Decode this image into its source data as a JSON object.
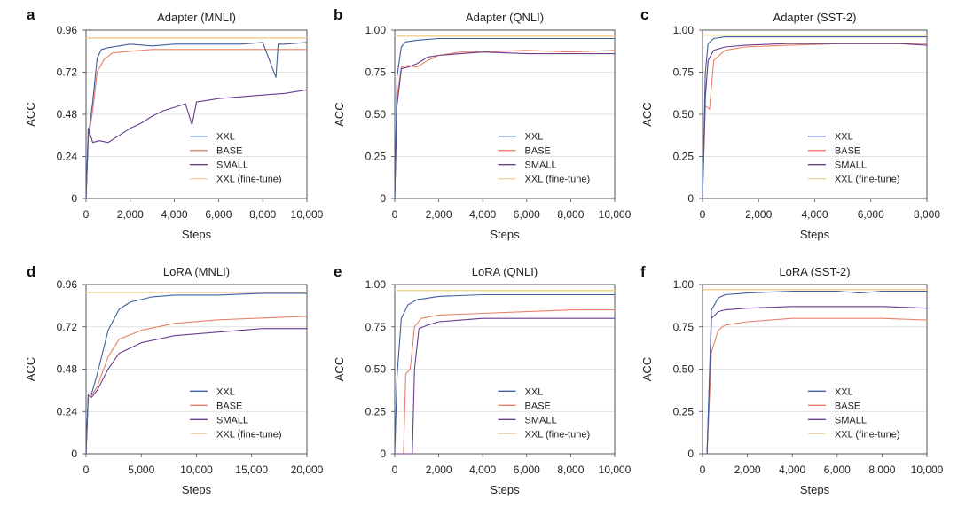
{
  "figure": {
    "series_names": [
      "XXL",
      "BASE",
      "SMALL",
      "XXL (fine-tune)"
    ],
    "colors": {
      "XXL": "#3f5f9e",
      "BASE": "#e8806a",
      "SMALL": "#6a3d8e",
      "XXL (fine-tune)": "#f2d49b",
      "grid": "#d9d9d9",
      "frame": "#444444"
    }
  },
  "chart_data": [
    {
      "panel": "a",
      "type": "line",
      "title": "Adapter (MNLI)",
      "xlabel": "Steps",
      "ylabel": "ACC",
      "xlim": [
        0,
        10000
      ],
      "ylim": [
        0,
        0.96
      ],
      "xticks": [
        0,
        2000,
        4000,
        6000,
        8000,
        10000
      ],
      "xtick_labels": [
        "0",
        "2,000",
        "4,000",
        "6,000",
        "8,000",
        "10,000"
      ],
      "yticks": [
        0,
        0.24,
        0.48,
        0.72,
        0.96
      ],
      "ytick_labels": [
        "0",
        "0.24",
        "0.48",
        "0.72",
        "0.96"
      ],
      "series": [
        {
          "name": "XXL",
          "x": [
            0,
            100,
            300,
            500,
            700,
            1000,
            1500,
            2000,
            3000,
            4000,
            5000,
            6000,
            7000,
            8000,
            8600,
            8700,
            9000,
            10000
          ],
          "y": [
            0.0,
            0.35,
            0.55,
            0.8,
            0.85,
            0.86,
            0.87,
            0.88,
            0.87,
            0.88,
            0.88,
            0.88,
            0.88,
            0.89,
            0.69,
            0.88,
            0.88,
            0.89
          ]
        },
        {
          "name": "BASE",
          "x": [
            0,
            100,
            300,
            500,
            800,
            1200,
            2000,
            3000,
            4000,
            5000,
            6000,
            7000,
            8000,
            9000,
            10000
          ],
          "y": [
            0.0,
            0.34,
            0.5,
            0.72,
            0.79,
            0.83,
            0.84,
            0.85,
            0.85,
            0.85,
            0.85,
            0.85,
            0.85,
            0.85,
            0.85
          ]
        },
        {
          "name": "SMALL",
          "x": [
            0,
            100,
            300,
            600,
            1000,
            1500,
            2000,
            2500,
            3000,
            3500,
            4000,
            4500,
            4800,
            5000,
            5500,
            6000,
            7000,
            8000,
            9000,
            10000
          ],
          "y": [
            0.0,
            0.4,
            0.32,
            0.33,
            0.32,
            0.36,
            0.4,
            0.43,
            0.47,
            0.5,
            0.52,
            0.54,
            0.42,
            0.55,
            0.56,
            0.57,
            0.58,
            0.59,
            0.6,
            0.62
          ]
        },
        {
          "name": "XXL (fine-tune)",
          "x": [
            0,
            10000
          ],
          "y": [
            0.915,
            0.915
          ]
        }
      ]
    },
    {
      "panel": "b",
      "type": "line",
      "title": "Adapter (QNLI)",
      "xlabel": "Steps",
      "ylabel": "ACC",
      "xlim": [
        0,
        10000
      ],
      "ylim": [
        0,
        1.0
      ],
      "xticks": [
        0,
        2000,
        4000,
        6000,
        8000,
        10000
      ],
      "xtick_labels": [
        "0",
        "2,000",
        "4,000",
        "6,000",
        "8,000",
        "10,000"
      ],
      "yticks": [
        0,
        0.25,
        0.5,
        0.75,
        1.0
      ],
      "ytick_labels": [
        "0",
        "0.25",
        "0.50",
        "0.75",
        "1.00"
      ],
      "series": [
        {
          "name": "XXL",
          "x": [
            0,
            100,
            300,
            500,
            1000,
            2000,
            4000,
            6000,
            8000,
            10000
          ],
          "y": [
            0.0,
            0.72,
            0.9,
            0.93,
            0.94,
            0.95,
            0.95,
            0.95,
            0.95,
            0.95
          ]
        },
        {
          "name": "BASE",
          "x": [
            0,
            100,
            300,
            600,
            1000,
            1500,
            2000,
            3000,
            4000,
            6000,
            8000,
            10000
          ],
          "y": [
            0.0,
            0.6,
            0.78,
            0.79,
            0.78,
            0.82,
            0.85,
            0.87,
            0.87,
            0.88,
            0.87,
            0.88
          ]
        },
        {
          "name": "SMALL",
          "x": [
            0,
            100,
            300,
            600,
            1000,
            1500,
            2000,
            3000,
            4000,
            6000,
            8000,
            10000
          ],
          "y": [
            0.0,
            0.55,
            0.77,
            0.78,
            0.8,
            0.84,
            0.85,
            0.86,
            0.87,
            0.86,
            0.86,
            0.86
          ]
        },
        {
          "name": "XXL (fine-tune)",
          "x": [
            0,
            10000
          ],
          "y": [
            0.965,
            0.965
          ]
        }
      ]
    },
    {
      "panel": "c",
      "type": "line",
      "title": "Adapter (SST-2)",
      "xlabel": "Steps",
      "ylabel": "ACC",
      "xlim": [
        0,
        8000
      ],
      "ylim": [
        0,
        1.0
      ],
      "xticks": [
        0,
        2000,
        4000,
        6000,
        8000
      ],
      "xtick_labels": [
        "0",
        "2,000",
        "4,000",
        "6,000",
        "8,000"
      ],
      "yticks": [
        0,
        0.25,
        0.5,
        0.75,
        1.0
      ],
      "ytick_labels": [
        "0",
        "0.25",
        "0.50",
        "0.75",
        "1.00"
      ],
      "series": [
        {
          "name": "XXL",
          "x": [
            0,
            100,
            200,
            400,
            800,
            1500,
            3000,
            5000,
            7000,
            8000
          ],
          "y": [
            0.0,
            0.75,
            0.92,
            0.95,
            0.96,
            0.96,
            0.96,
            0.96,
            0.96,
            0.96
          ]
        },
        {
          "name": "BASE",
          "x": [
            0,
            100,
            250,
            400,
            800,
            1500,
            3000,
            5000,
            7000,
            8000
          ],
          "y": [
            0.0,
            0.55,
            0.53,
            0.82,
            0.88,
            0.9,
            0.91,
            0.92,
            0.92,
            0.92
          ]
        },
        {
          "name": "SMALL",
          "x": [
            0,
            100,
            200,
            400,
            800,
            1500,
            3000,
            5000,
            7000,
            8000
          ],
          "y": [
            0.0,
            0.6,
            0.82,
            0.88,
            0.9,
            0.91,
            0.92,
            0.92,
            0.92,
            0.91
          ]
        },
        {
          "name": "XXL (fine-tune)",
          "x": [
            0,
            8000
          ],
          "y": [
            0.97,
            0.97
          ]
        }
      ]
    },
    {
      "panel": "d",
      "type": "line",
      "title": "LoRA (MNLI)",
      "xlabel": "Steps",
      "ylabel": "ACC",
      "xlim": [
        0,
        20000
      ],
      "ylim": [
        0,
        0.96
      ],
      "xticks": [
        0,
        5000,
        10000,
        15000,
        20000
      ],
      "xtick_labels": [
        "0",
        "5,000",
        "10,000",
        "15,000",
        "20,000"
      ],
      "yticks": [
        0,
        0.24,
        0.48,
        0.72,
        0.96
      ],
      "ytick_labels": [
        "0",
        "0.24",
        "0.48",
        "0.72",
        "0.96"
      ],
      "series": [
        {
          "name": "XXL",
          "x": [
            0,
            200,
            500,
            1000,
            2000,
            3000,
            4000,
            6000,
            8000,
            12000,
            16000,
            20000
          ],
          "y": [
            0.0,
            0.34,
            0.34,
            0.45,
            0.7,
            0.82,
            0.86,
            0.89,
            0.9,
            0.9,
            0.91,
            0.91
          ]
        },
        {
          "name": "BASE",
          "x": [
            0,
            200,
            500,
            1000,
            2000,
            3000,
            5000,
            8000,
            12000,
            16000,
            20000
          ],
          "y": [
            0.0,
            0.33,
            0.33,
            0.38,
            0.55,
            0.65,
            0.7,
            0.74,
            0.76,
            0.77,
            0.78
          ]
        },
        {
          "name": "SMALL",
          "x": [
            0,
            200,
            500,
            1000,
            2000,
            3000,
            5000,
            8000,
            12000,
            16000,
            20000
          ],
          "y": [
            0.0,
            0.33,
            0.32,
            0.36,
            0.48,
            0.57,
            0.63,
            0.67,
            0.69,
            0.71,
            0.71
          ]
        },
        {
          "name": "XXL (fine-tune)",
          "x": [
            0,
            20000
          ],
          "y": [
            0.915,
            0.915
          ]
        }
      ]
    },
    {
      "panel": "e",
      "type": "line",
      "title": "LoRA (QNLI)",
      "xlabel": "Steps",
      "ylabel": "ACC",
      "xlim": [
        0,
        10000
      ],
      "ylim": [
        0,
        1.0
      ],
      "xticks": [
        0,
        2000,
        4000,
        6000,
        8000,
        10000
      ],
      "xtick_labels": [
        "0",
        "2,000",
        "4,000",
        "6,000",
        "8,000",
        "10,000"
      ],
      "yticks": [
        0,
        0.25,
        0.5,
        0.75,
        1.0
      ],
      "ytick_labels": [
        "0",
        "0.25",
        "0.50",
        "0.75",
        "1.00"
      ],
      "series": [
        {
          "name": "XXL",
          "x": [
            0,
            100,
            300,
            600,
            1000,
            2000,
            4000,
            6000,
            8000,
            10000
          ],
          "y": [
            0.0,
            0.45,
            0.8,
            0.88,
            0.91,
            0.93,
            0.94,
            0.94,
            0.94,
            0.94
          ]
        },
        {
          "name": "BASE",
          "x": [
            0,
            400,
            500,
            700,
            900,
            1200,
            2000,
            4000,
            6000,
            8000,
            10000
          ],
          "y": [
            0.0,
            0.0,
            0.47,
            0.5,
            0.75,
            0.8,
            0.82,
            0.83,
            0.84,
            0.85,
            0.85
          ]
        },
        {
          "name": "SMALL",
          "x": [
            0,
            800,
            900,
            1100,
            1500,
            2000,
            4000,
            6000,
            8000,
            10000
          ],
          "y": [
            0.0,
            0.0,
            0.5,
            0.74,
            0.76,
            0.78,
            0.8,
            0.8,
            0.8,
            0.8
          ]
        },
        {
          "name": "XXL (fine-tune)",
          "x": [
            0,
            10000
          ],
          "y": [
            0.965,
            0.965
          ]
        }
      ]
    },
    {
      "panel": "f",
      "type": "line",
      "title": "LoRA (SST-2)",
      "xlabel": "Steps",
      "ylabel": "ACC",
      "xlim": [
        0,
        10000
      ],
      "ylim": [
        0,
        1.0
      ],
      "xticks": [
        0,
        2000,
        4000,
        6000,
        8000,
        10000
      ],
      "xtick_labels": [
        "0",
        "2,000",
        "4,000",
        "6,000",
        "8,000",
        "10,000"
      ],
      "yticks": [
        0,
        0.25,
        0.5,
        0.75,
        1.0
      ],
      "ytick_labels": [
        "0",
        "0.25",
        "0.50",
        "0.75",
        "1.00"
      ],
      "series": [
        {
          "name": "XXL",
          "x": [
            0,
            200,
            400,
            700,
            1000,
            2000,
            4000,
            6000,
            7000,
            8000,
            10000
          ],
          "y": [
            0.0,
            0.0,
            0.85,
            0.92,
            0.94,
            0.95,
            0.96,
            0.96,
            0.95,
            0.96,
            0.96
          ]
        },
        {
          "name": "BASE",
          "x": [
            0,
            200,
            400,
            700,
            1000,
            2000,
            4000,
            6000,
            8000,
            10000
          ],
          "y": [
            0.0,
            0.0,
            0.6,
            0.73,
            0.76,
            0.78,
            0.8,
            0.8,
            0.8,
            0.79
          ]
        },
        {
          "name": "SMALL",
          "x": [
            0,
            200,
            400,
            700,
            1000,
            2000,
            4000,
            6000,
            8000,
            10000
          ],
          "y": [
            0.0,
            0.0,
            0.8,
            0.84,
            0.85,
            0.86,
            0.87,
            0.87,
            0.87,
            0.86
          ]
        },
        {
          "name": "XXL (fine-tune)",
          "x": [
            0,
            10000
          ],
          "y": [
            0.97,
            0.97
          ]
        }
      ]
    }
  ]
}
